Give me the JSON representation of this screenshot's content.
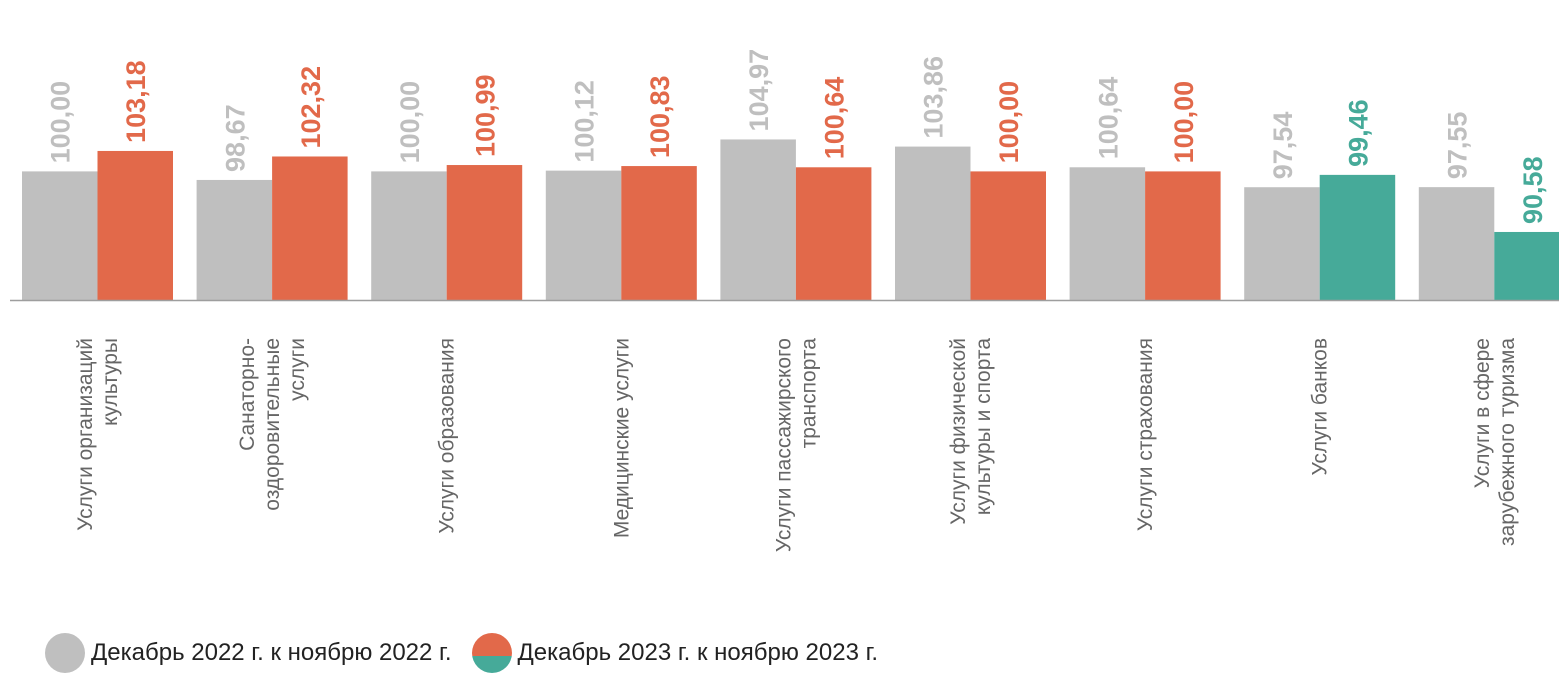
{
  "chart_data": {
    "type": "bar",
    "categories": [
      [
        "Услуги организаций",
        "культуры"
      ],
      [
        "Санаторно-",
        "оздоровительные",
        "услуги"
      ],
      [
        "Услуги образования"
      ],
      [
        "Медицинские услуги"
      ],
      [
        "Услуги пассажирского",
        "транспорта"
      ],
      [
        "Услуги физической",
        "культуры и спорта"
      ],
      [
        "Услуги страхования"
      ],
      [
        "Услуги банков"
      ],
      [
        "Услуги в сфере",
        "зарубежного туризма"
      ]
    ],
    "series": [
      {
        "name": "Декабрь 2022 г. к ноябрю 2022 г.",
        "values": [
          100.0,
          98.67,
          100.0,
          100.12,
          104.97,
          103.86,
          100.64,
          97.54,
          97.55
        ],
        "labels": [
          "100,00",
          "98,67",
          "100,00",
          "100,12",
          "104,97",
          "103,86",
          "100,64",
          "97,54",
          "97,55"
        ],
        "color": "#bfbfbf",
        "label_color": "#bfbfbf"
      },
      {
        "name": "Декабрь 2023 г.  к ноябрю 2023 г.",
        "values": [
          103.18,
          102.32,
          100.99,
          100.83,
          100.64,
          100.0,
          100.0,
          99.46,
          90.58
        ],
        "labels": [
          "103,18",
          "102,32",
          "100,99",
          "100,83",
          "100,64",
          "100,00",
          "100,00",
          "99,46",
          "90,58"
        ],
        "color_above_100": "#e2694a",
        "color_below_100": "#46aa99"
      }
    ],
    "baseline": 100,
    "ylim": [
      80,
      107
    ],
    "grid": false,
    "legend_position": "bottom-left"
  },
  "legend": {
    "item1": "Декабрь 2022 г. к ноябрю 2022 г.",
    "item2": "Декабрь 2023 г.  к ноябрю 2023 г."
  }
}
